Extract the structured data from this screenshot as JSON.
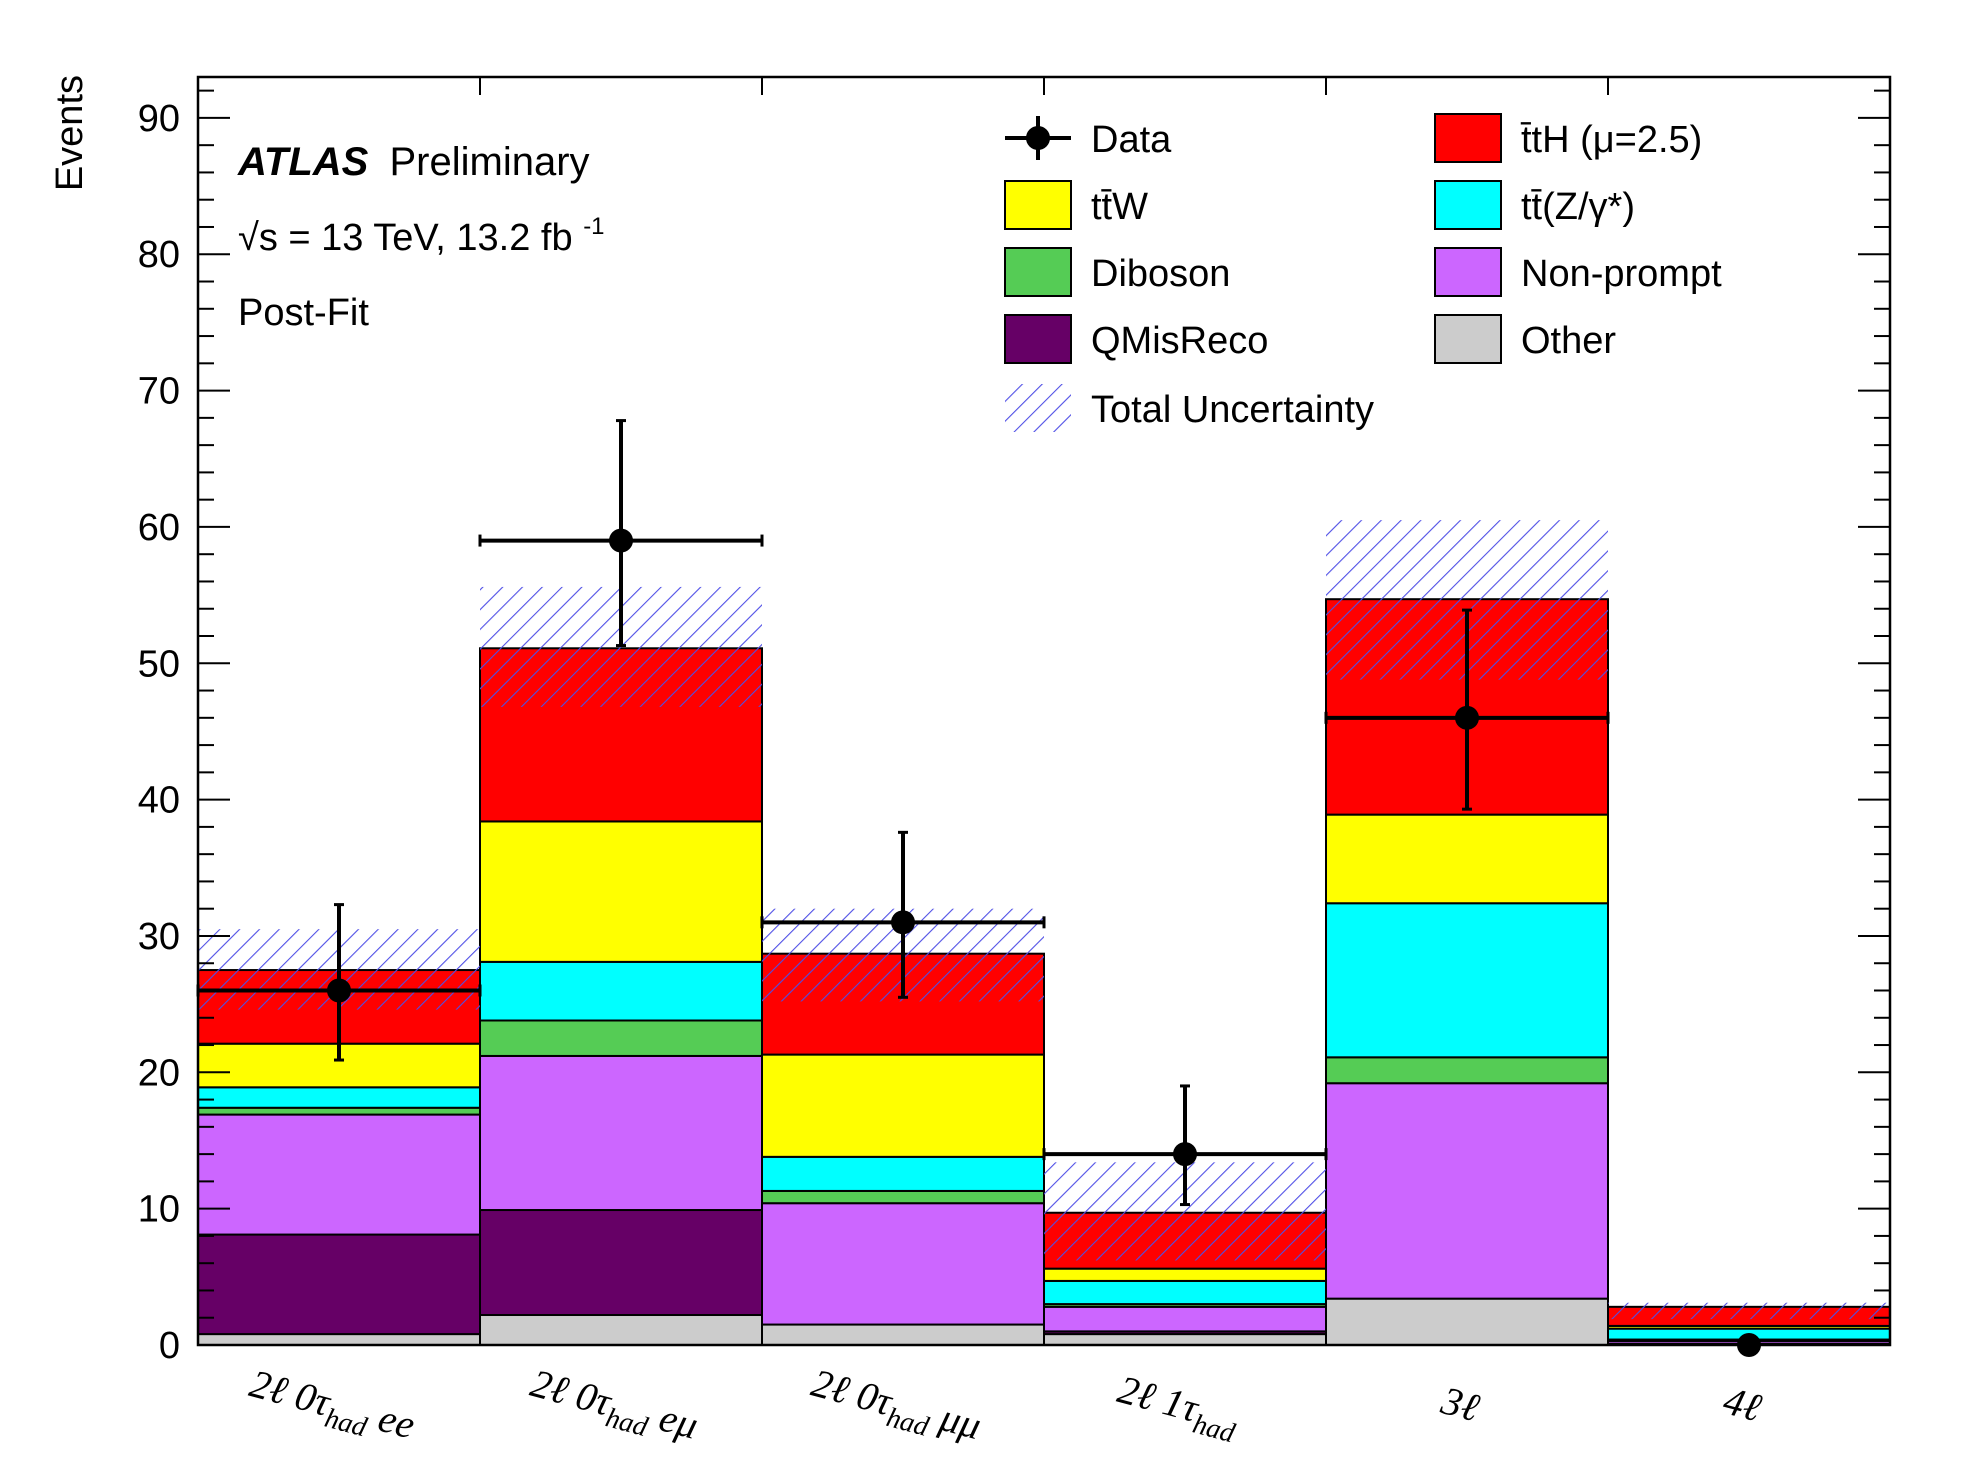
{
  "chart_data": {
    "type": "bar",
    "stacked": true,
    "ylabel": "Events",
    "xlabel": "",
    "ylim": [
      0,
      93
    ],
    "yticks": [
      0,
      10,
      20,
      30,
      40,
      50,
      60,
      70,
      80,
      90
    ],
    "annotations": {
      "experiment": "ATLAS",
      "status": "Preliminary",
      "energy": "√s = 13 TeV, 13.2 fb",
      "energy_sup": "-1",
      "fit": "Post-Fit"
    },
    "categories": [
      {
        "label": "2ℓ 0τ",
        "sub": "had",
        "suffix": " ee"
      },
      {
        "label": "2ℓ 0τ",
        "sub": "had",
        "suffix": " eμ"
      },
      {
        "label": "2ℓ 0τ",
        "sub": "had",
        "suffix": " μμ"
      },
      {
        "label": "2ℓ 1τ",
        "sub": "had",
        "suffix": ""
      },
      {
        "label": "3ℓ",
        "sub": "",
        "suffix": ""
      },
      {
        "label": "4ℓ",
        "sub": "",
        "suffix": ""
      }
    ],
    "series": [
      {
        "name": "Other",
        "color": "#cccccc",
        "values": [
          0.8,
          2.2,
          1.5,
          0.8,
          3.4,
          0.1
        ]
      },
      {
        "name": "QMisReco",
        "color": "#660066",
        "values": [
          7.3,
          7.7,
          0.0,
          0.2,
          0.0,
          0.0
        ]
      },
      {
        "name": "Non-prompt",
        "color": "#cc66ff",
        "values": [
          8.8,
          11.3,
          8.9,
          1.8,
          15.8,
          0.2
        ]
      },
      {
        "name": "Diboson",
        "color": "#55cc55",
        "values": [
          0.5,
          2.6,
          0.9,
          0.2,
          1.9,
          0.1
        ]
      },
      {
        "name": "tt̄(Z/γ*)",
        "color": "#00ffff",
        "values": [
          1.5,
          4.3,
          2.5,
          1.7,
          11.3,
          0.8
        ]
      },
      {
        "name": "tt̄W",
        "color": "#ffff00",
        "values": [
          3.2,
          10.3,
          7.5,
          0.9,
          6.5,
          0.2
        ]
      },
      {
        "name": "tt̄H (μ=2.5)",
        "color": "#ff0000",
        "values": [
          5.4,
          12.7,
          7.4,
          4.1,
          15.8,
          1.4
        ]
      }
    ],
    "uncertainty": {
      "name": "Total Uncertainty",
      "low": [
        24.6,
        46.8,
        25.2,
        6.2,
        48.8,
        1.9
      ],
      "high": [
        30.5,
        55.6,
        32.0,
        13.4,
        60.5,
        3.1
      ]
    },
    "data": {
      "name": "Data",
      "values": [
        26,
        59,
        31,
        14,
        46,
        0
      ],
      "err_up": [
        6.3,
        8.8,
        6.6,
        5.0,
        7.9,
        0
      ],
      "err_down": [
        5.1,
        7.7,
        5.5,
        3.7,
        6.7,
        0
      ]
    },
    "legend_position": "top-right",
    "legend": [
      {
        "key": "data",
        "label": "Data"
      },
      {
        "key": "tth",
        "label": "t̄tH (μ=2.5)"
      },
      {
        "key": "ttw",
        "label": "tt̄W"
      },
      {
        "key": "ttz",
        "label": "tt̄(Z/γ*)"
      },
      {
        "key": "diboson",
        "label": "Diboson"
      },
      {
        "key": "nonprompt",
        "label": "Non-prompt"
      },
      {
        "key": "qmis",
        "label": "QMisReco"
      },
      {
        "key": "other",
        "label": "Other"
      },
      {
        "key": "unc",
        "label": "Total Uncertainty"
      }
    ],
    "colors": {
      "unc_hatch": "#5050e6",
      "tth": "#ff0000",
      "ttw": "#ffff00",
      "ttz": "#00ffff",
      "diboson": "#55cc55",
      "nonprompt": "#cc66ff",
      "qmis": "#660066",
      "other": "#cccccc"
    }
  }
}
